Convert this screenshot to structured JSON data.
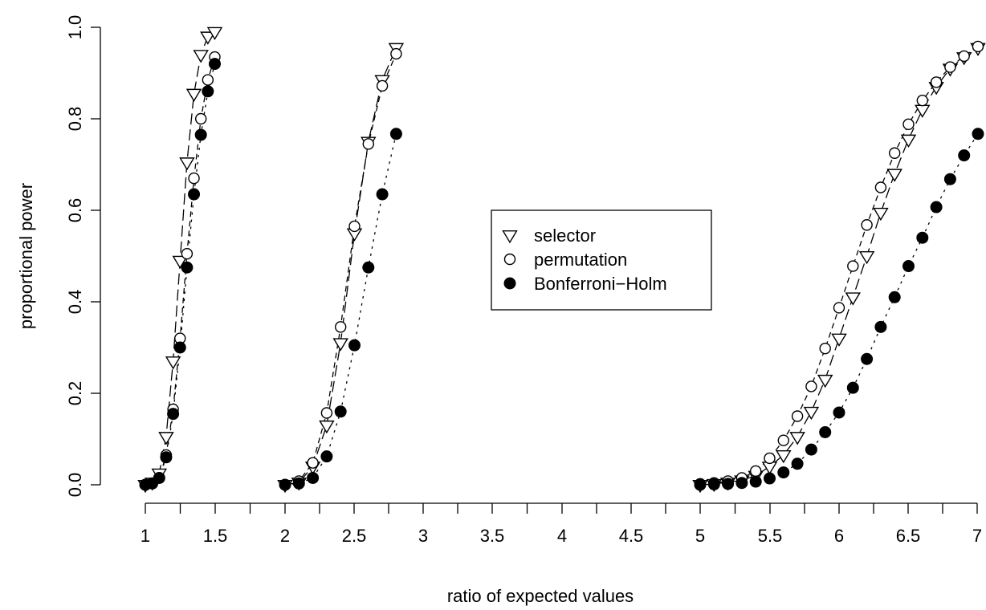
{
  "chart_data": {
    "type": "scatter",
    "xlabel": "ratio of expected values",
    "ylabel": "proportional power",
    "ylim": [
      0,
      1
    ],
    "y_ticks": [
      "0.0",
      "0.2",
      "0.4",
      "0.6",
      "0.8",
      "1.0"
    ],
    "x_axis_segments": [
      {
        "range": [
          1,
          1.5
        ],
        "ticks": [
          "1",
          "1.5"
        ]
      },
      {
        "range": [
          2,
          2.8
        ],
        "ticks": [
          "2",
          "2.5",
          "3",
          "3.5",
          "4",
          "4.5"
        ]
      },
      {
        "range": [
          5,
          7
        ],
        "ticks": [
          "5",
          "5.5",
          "6",
          "6.5",
          "7"
        ]
      }
    ],
    "legend_position": "center",
    "series": [
      {
        "name": "selector",
        "marker": "triangle-down-open",
        "line": "long-dash",
        "groups": [
          {
            "x": [
              1.0,
              1.05,
              1.1,
              1.15,
              1.2,
              1.25,
              1.3,
              1.35,
              1.4,
              1.45,
              1.5
            ],
            "y": [
              0.0,
              0.005,
              0.025,
              0.105,
              0.27,
              0.49,
              0.705,
              0.855,
              0.94,
              0.98,
              0.99
            ]
          },
          {
            "x": [
              2.0,
              2.1,
              2.2,
              2.3,
              2.4,
              2.5,
              2.6,
              2.7,
              2.8
            ],
            "y": [
              0.0,
              0.005,
              0.04,
              0.13,
              0.31,
              0.55,
              0.75,
              0.885,
              0.955
            ]
          },
          {
            "x": [
              5.0,
              5.1,
              5.2,
              5.3,
              5.4,
              5.5,
              5.6,
              5.7,
              5.8,
              5.9,
              6.0,
              6.1,
              6.2,
              6.3,
              6.4,
              6.5,
              6.6,
              6.7,
              6.8,
              6.9,
              7.0
            ],
            "y": [
              0.0,
              0.002,
              0.005,
              0.01,
              0.02,
              0.04,
              0.065,
              0.105,
              0.16,
              0.23,
              0.32,
              0.41,
              0.5,
              0.595,
              0.68,
              0.755,
              0.82,
              0.87,
              0.91,
              0.935,
              0.955
            ]
          }
        ]
      },
      {
        "name": "permutation",
        "marker": "circle-open",
        "line": "dash",
        "groups": [
          {
            "x": [
              1.0,
              1.05,
              1.1,
              1.15,
              1.2,
              1.25,
              1.3,
              1.35,
              1.4,
              1.45,
              1.5
            ],
            "y": [
              0.0,
              0.003,
              0.015,
              0.065,
              0.165,
              0.32,
              0.505,
              0.67,
              0.8,
              0.885,
              0.935
            ]
          },
          {
            "x": [
              2.0,
              2.1,
              2.2,
              2.3,
              2.4,
              2.5,
              2.6,
              2.7,
              2.8
            ],
            "y": [
              0.0,
              0.008,
              0.048,
              0.157,
              0.345,
              0.565,
              0.745,
              0.872,
              0.942
            ]
          },
          {
            "x": [
              5.0,
              5.1,
              5.2,
              5.3,
              5.4,
              5.5,
              5.6,
              5.7,
              5.8,
              5.9,
              6.0,
              6.1,
              6.2,
              6.3,
              6.4,
              6.5,
              6.6,
              6.7,
              6.8,
              6.9,
              7.0
            ],
            "y": [
              0.002,
              0.004,
              0.008,
              0.015,
              0.03,
              0.058,
              0.097,
              0.15,
              0.215,
              0.298,
              0.387,
              0.478,
              0.568,
              0.65,
              0.725,
              0.788,
              0.84,
              0.88,
              0.913,
              0.937,
              0.958
            ]
          }
        ]
      },
      {
        "name": "Bonferroni−Holm",
        "marker": "circle-filled",
        "line": "dot",
        "groups": [
          {
            "x": [
              1.0,
              1.05,
              1.1,
              1.15,
              1.2,
              1.25,
              1.3,
              1.35,
              1.4,
              1.45,
              1.5
            ],
            "y": [
              0.0,
              0.003,
              0.015,
              0.06,
              0.155,
              0.3,
              0.475,
              0.635,
              0.765,
              0.86,
              0.92
            ]
          },
          {
            "x": [
              2.0,
              2.1,
              2.2,
              2.3,
              2.4,
              2.5,
              2.6,
              2.7,
              2.8
            ],
            "y": [
              0.0,
              0.003,
              0.015,
              0.062,
              0.16,
              0.305,
              0.475,
              0.635,
              0.767
            ]
          },
          {
            "x": [
              5.0,
              5.1,
              5.2,
              5.3,
              5.4,
              5.5,
              5.6,
              5.7,
              5.8,
              5.9,
              6.0,
              6.1,
              6.2,
              6.3,
              6.4,
              6.5,
              6.6,
              6.7,
              6.8,
              6.9,
              7.0
            ],
            "y": [
              0.0,
              0.001,
              0.002,
              0.004,
              0.007,
              0.014,
              0.027,
              0.046,
              0.077,
              0.115,
              0.158,
              0.212,
              0.275,
              0.345,
              0.41,
              0.478,
              0.54,
              0.607,
              0.668,
              0.72,
              0.767
            ]
          }
        ]
      }
    ]
  }
}
